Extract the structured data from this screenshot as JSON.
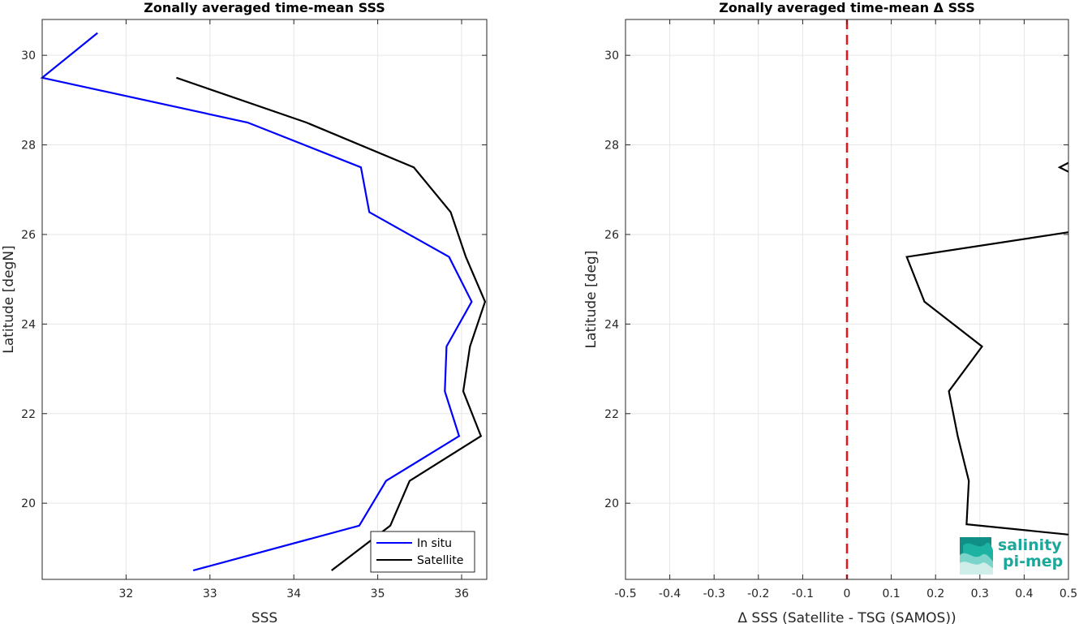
{
  "chart_data": [
    {
      "type": "line",
      "title": "Zonally averaged time-mean SSS",
      "xlabel": "SSS",
      "ylabel": "Latitude [degN]",
      "xlim": [
        31.0,
        36.3
      ],
      "ylim": [
        18.3,
        30.8
      ],
      "xticks": [
        32,
        33,
        34,
        35,
        36
      ],
      "yticks": [
        20,
        22,
        24,
        26,
        28,
        30
      ],
      "grid": true,
      "legend": "bottom-right",
      "series": [
        {
          "name": "In situ",
          "color": "#0000ff",
          "points": [
            [
              32.8,
              18.5
            ],
            [
              34.78,
              19.5
            ],
            [
              35.1,
              20.5
            ],
            [
              35.97,
              21.5
            ],
            [
              35.8,
              22.5
            ],
            [
              35.82,
              23.5
            ],
            [
              36.12,
              24.5
            ],
            [
              35.85,
              25.5
            ],
            [
              34.9,
              26.5
            ],
            [
              34.8,
              27.5
            ],
            [
              33.45,
              28.5
            ],
            [
              31.0,
              29.5
            ],
            [
              31.66,
              30.5
            ]
          ]
        },
        {
          "name": "Satellite",
          "color": "#000000",
          "points": [
            [
              34.45,
              18.5
            ],
            [
              35.15,
              19.5
            ],
            [
              35.38,
              20.5
            ],
            [
              36.23,
              21.5
            ],
            [
              36.02,
              22.5
            ],
            [
              36.1,
              23.5
            ],
            [
              36.28,
              24.5
            ],
            [
              36.05,
              25.5
            ],
            [
              35.87,
              26.5
            ],
            [
              35.43,
              27.5
            ],
            [
              34.15,
              28.5
            ],
            [
              32.6,
              29.5
            ]
          ]
        }
      ]
    },
    {
      "type": "line",
      "title": "Zonally averaged time-mean Δ SSS",
      "xlabel": "Δ SSS (Satellite - TSG (SAMOS))",
      "ylabel": "Latitude [deg]",
      "xlim": [
        -0.5,
        0.5
      ],
      "ylim": [
        18.3,
        30.8
      ],
      "xticks": [
        -0.5,
        -0.4,
        -0.3,
        -0.2,
        -0.1,
        0,
        0.1,
        0.2,
        0.3,
        0.4,
        0.5
      ],
      "yticks": [
        20,
        22,
        24,
        26,
        28,
        30
      ],
      "grid": true,
      "reference_line": {
        "x": 0,
        "color": "#e8141a",
        "style": "dashed"
      },
      "series": [
        {
          "name": "",
          "color": "#000000",
          "points": [
            [
              0.5,
              19.3
            ],
            [
              0.27,
              19.53
            ],
            [
              0.275,
              20.5
            ],
            [
              0.25,
              21.5
            ],
            [
              0.23,
              22.5
            ],
            [
              0.305,
              23.5
            ],
            [
              0.175,
              24.5
            ],
            [
              0.135,
              25.5
            ],
            [
              0.5,
              26.05
            ]
          ],
          "fragment": [
            [
              0.5,
              27.4
            ],
            [
              0.48,
              27.5
            ],
            [
              0.5,
              27.6
            ]
          ]
        }
      ]
    }
  ],
  "logo": {
    "line1": "salinity",
    "line2": "pi-mep",
    "colors": [
      "#0f8f86",
      "#1cb3a3",
      "#7bd4c9",
      "#cfeee9"
    ]
  }
}
